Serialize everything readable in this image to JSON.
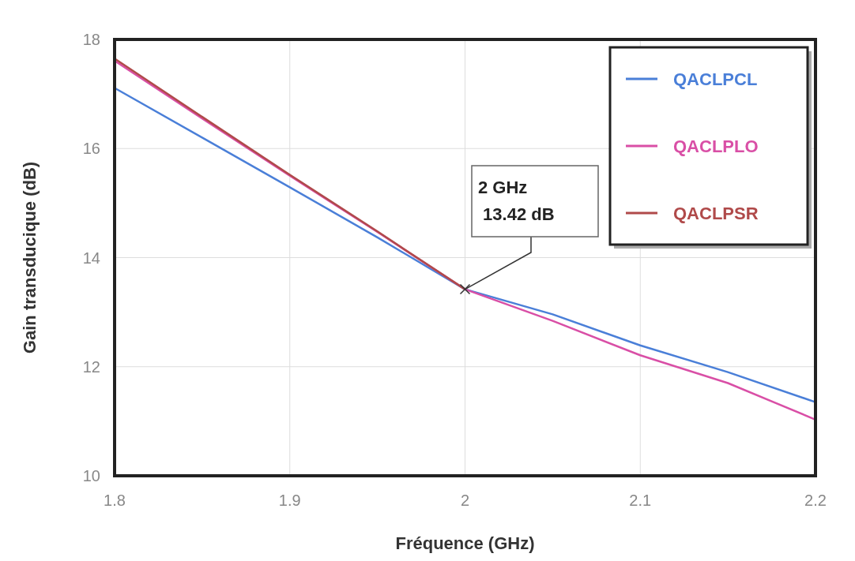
{
  "chart_data": {
    "type": "line",
    "xlabel": "Fréquence (GHz)",
    "ylabel": "Gain transducique (dB)",
    "x": [
      1.8,
      1.85,
      1.9,
      1.95,
      2.0,
      2.05,
      2.1,
      2.15,
      2.2
    ],
    "series": [
      {
        "name": "QACLPCL",
        "color": "#4a7fd8",
        "values": [
          17.11,
          16.2,
          15.29,
          14.37,
          13.42,
          12.96,
          12.39,
          11.9,
          11.35
        ]
      },
      {
        "name": "QACLPLO",
        "color": "#d94fa6",
        "values": [
          17.61,
          16.55,
          15.5,
          14.47,
          13.42,
          12.84,
          12.21,
          11.7,
          11.03
        ]
      },
      {
        "name": "QACLPSR",
        "color": "#b04a4a",
        "values": [
          17.65,
          16.58,
          15.52,
          14.48,
          13.42,
          null,
          null,
          null,
          null
        ]
      }
    ],
    "xlim": [
      1.8,
      2.2
    ],
    "xticks": [
      1.8,
      1.9,
      2,
      2.1,
      2.2
    ],
    "ylim": [
      10,
      18
    ],
    "yticks": [
      10,
      12,
      14,
      16,
      18
    ],
    "grid": true,
    "legend": "top right",
    "marker": "none",
    "line_style": "solid",
    "annotations": [
      {
        "text": "2 GHz\n 13.42 dB",
        "x": 2,
        "y": 13.42
      }
    ]
  }
}
